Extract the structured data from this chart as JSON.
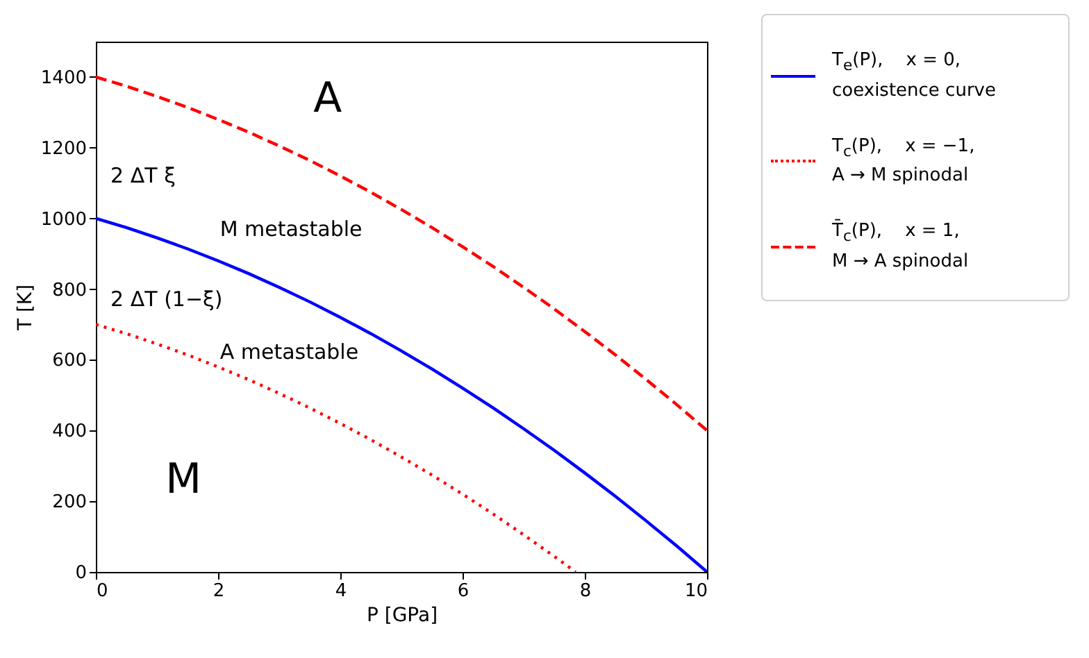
{
  "chart_data": {
    "type": "line",
    "xlabel": "P [GPa]",
    "ylabel": "T [K]",
    "x": [
      0,
      0.5,
      1,
      1.5,
      2,
      2.5,
      3,
      3.5,
      4,
      4.5,
      5,
      5.5,
      6,
      6.5,
      7,
      7.5,
      8,
      8.5,
      9,
      9.5,
      10
    ],
    "series": [
      {
        "name": "T$_{e}$(P),    x = 0,\ncoexistence curve",
        "color": "#0000ff",
        "line_style": "solid",
        "values": [
          1000,
          974,
          945,
          914,
          880,
          844,
          805,
          764,
          720,
          674,
          625,
          574,
          520,
          464,
          405,
          344,
          280,
          214,
          145,
          74,
          0
        ]
      },
      {
        "name": "T$_{c}$(P),    x = −1,\nA → M spinodal",
        "color": "#ff0000",
        "line_style": "dotted",
        "x": [
          0,
          0.5,
          1,
          1.5,
          2,
          2.5,
          3,
          3.5,
          4,
          4.5,
          5,
          5.5,
          6,
          6.5,
          7,
          7.5,
          7.85
        ],
        "values": [
          700,
          674,
          645,
          614,
          580,
          544,
          505,
          464,
          420,
          374,
          325,
          274,
          220,
          164,
          105,
          44,
          0
        ]
      },
      {
        "name": "T̄$_{c}$(P),    x = 1,\nM → A spinodal",
        "color": "#ff0000",
        "line_style": "dashed",
        "values": [
          1400,
          1374,
          1345,
          1314,
          1280,
          1244,
          1205,
          1164,
          1120,
          1074,
          1025,
          974,
          920,
          864,
          805,
          744,
          680,
          614,
          545,
          474,
          400
        ]
      }
    ],
    "xlim": [
      0,
      10
    ],
    "xticks": [
      0,
      2,
      4,
      6,
      8,
      10
    ],
    "ylim": [
      0,
      1500
    ],
    "yticks": [
      0,
      200,
      400,
      600,
      800,
      1000,
      1200,
      1400
    ],
    "grid": false,
    "legend": "right",
    "annotations": [
      "A",
      "2 ΔT ξ",
      "M metastable",
      "2 ΔT (1−ξ)",
      "A metastable",
      "M"
    ]
  }
}
